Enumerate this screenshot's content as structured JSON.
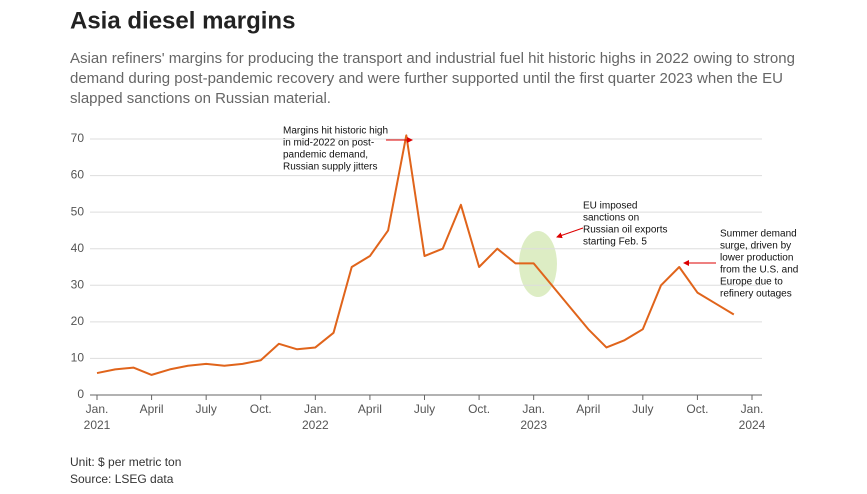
{
  "chart_data": {
    "type": "line",
    "title": "Asia diesel margins",
    "subtitle": [
      "Asian refiners' margins for producing the transport and industrial fuel hit historic highs in 2022 owing to strong",
      "demand during post-pandemic recovery and were further supported until the first quarter 2023 when the EU",
      "slapped sanctions on Russian material."
    ],
    "x": [
      "2021-01",
      "2021-02",
      "2021-03",
      "2021-04",
      "2021-05",
      "2021-06",
      "2021-07",
      "2021-08",
      "2021-09",
      "2021-10",
      "2021-11",
      "2021-12",
      "2022-01",
      "2022-02",
      "2022-03",
      "2022-04",
      "2022-05",
      "2022-06",
      "2022-07",
      "2022-08",
      "2022-09",
      "2022-10",
      "2022-11",
      "2022-12",
      "2023-01",
      "2023-02",
      "2023-03",
      "2023-04",
      "2023-05",
      "2023-06",
      "2023-07",
      "2023-08",
      "2023-09",
      "2023-10",
      "2023-11",
      "2023-12"
    ],
    "series": [
      {
        "name": "Asia diesel margin",
        "color": "#e0641b",
        "values": [
          6,
          7,
          7.5,
          5.5,
          7,
          8,
          8.5,
          8,
          8.5,
          9.5,
          14,
          12.5,
          13,
          17,
          35,
          38,
          45,
          71,
          38,
          40,
          52,
          35,
          40,
          36,
          36,
          30,
          24,
          18,
          13,
          15,
          18,
          30,
          35,
          28,
          25,
          22
        ]
      }
    ],
    "xlim": [
      "2021-01",
      "2024-01"
    ],
    "xticks": [
      {
        "value": "2021-01",
        "label": "Jan."
      },
      {
        "value": "2021-04",
        "label": "April"
      },
      {
        "value": "2021-07",
        "label": "July"
      },
      {
        "value": "2021-10",
        "label": "Oct."
      },
      {
        "value": "2022-01",
        "label": "Jan."
      },
      {
        "value": "2022-04",
        "label": "April"
      },
      {
        "value": "2022-07",
        "label": "July"
      },
      {
        "value": "2022-10",
        "label": "Oct."
      },
      {
        "value": "2023-01",
        "label": "Jan."
      },
      {
        "value": "2023-04",
        "label": "April"
      },
      {
        "value": "2023-07",
        "label": "July"
      },
      {
        "value": "2023-10",
        "label": "Oct."
      },
      {
        "value": "2024-01",
        "label": "Jan."
      }
    ],
    "year_labels": [
      {
        "value": "2021-01",
        "label": "2021"
      },
      {
        "value": "2022-01",
        "label": "2022"
      },
      {
        "value": "2023-01",
        "label": "2023"
      },
      {
        "value": "2024-01",
        "label": "2024"
      }
    ],
    "ylim": [
      0,
      70
    ],
    "yticks": [
      0,
      10,
      20,
      30,
      40,
      50,
      60,
      70
    ],
    "grid": true,
    "annotations": [
      {
        "lines": [
          "Margins hit historic high",
          "in mid-2022 on post-",
          "pandemic demand,",
          "Russian supply jitters"
        ]
      },
      {
        "lines": [
          "EU imposed",
          "sanctions on",
          "Russian oil exports",
          "starting Feb. 5"
        ]
      },
      {
        "lines": [
          "Summer demand",
          "surge, driven by",
          "lower production",
          "from the U.S. and",
          "Europe due to",
          "refinery outages"
        ]
      }
    ],
    "unit": "Unit: $ per metric ton",
    "source": "Source: LSEG data"
  }
}
